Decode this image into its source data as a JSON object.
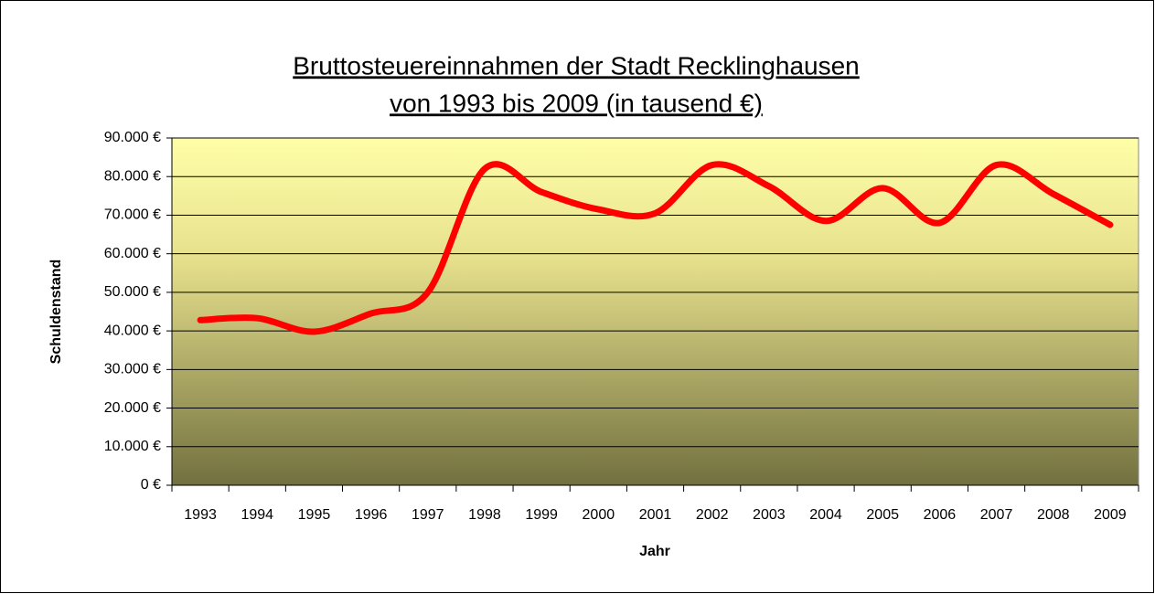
{
  "chart_data": {
    "type": "line",
    "title": [
      "Bruttosteuereinnahmen der Stadt Recklinghausen",
      "von 1993 bis 2009 (in tausend €)"
    ],
    "x_label": "Jahr",
    "y_label": "Schuldenstand",
    "categories": [
      "1993",
      "1994",
      "1995",
      "1996",
      "1997",
      "1998",
      "1999",
      "2000",
      "2001",
      "2002",
      "2003",
      "2004",
      "2005",
      "2006",
      "2007",
      "2008",
      "2009"
    ],
    "series": [
      {
        "name": "Schuldenstand",
        "color": "#ff0000",
        "values": [
          42800,
          43300,
          39800,
          44500,
          50000,
          82000,
          76000,
          71500,
          70500,
          83000,
          77500,
          68500,
          77000,
          68000,
          83000,
          75500,
          67500
        ]
      }
    ],
    "ylim": [
      0,
      90000
    ],
    "yticks": [
      {
        "value": 0,
        "label": "0 €"
      },
      {
        "value": 10000,
        "label": "10.000 €"
      },
      {
        "value": 20000,
        "label": "20.000 €"
      },
      {
        "value": 30000,
        "label": "30.000 €"
      },
      {
        "value": 40000,
        "label": "40.000 €"
      },
      {
        "value": 50000,
        "label": "50.000 €"
      },
      {
        "value": 60000,
        "label": "60.000 €"
      },
      {
        "value": 70000,
        "label": "70.000 €"
      },
      {
        "value": 80000,
        "label": "80.000 €"
      },
      {
        "value": 90000,
        "label": "90.000 €"
      }
    ],
    "grid": true,
    "smooth": true
  }
}
